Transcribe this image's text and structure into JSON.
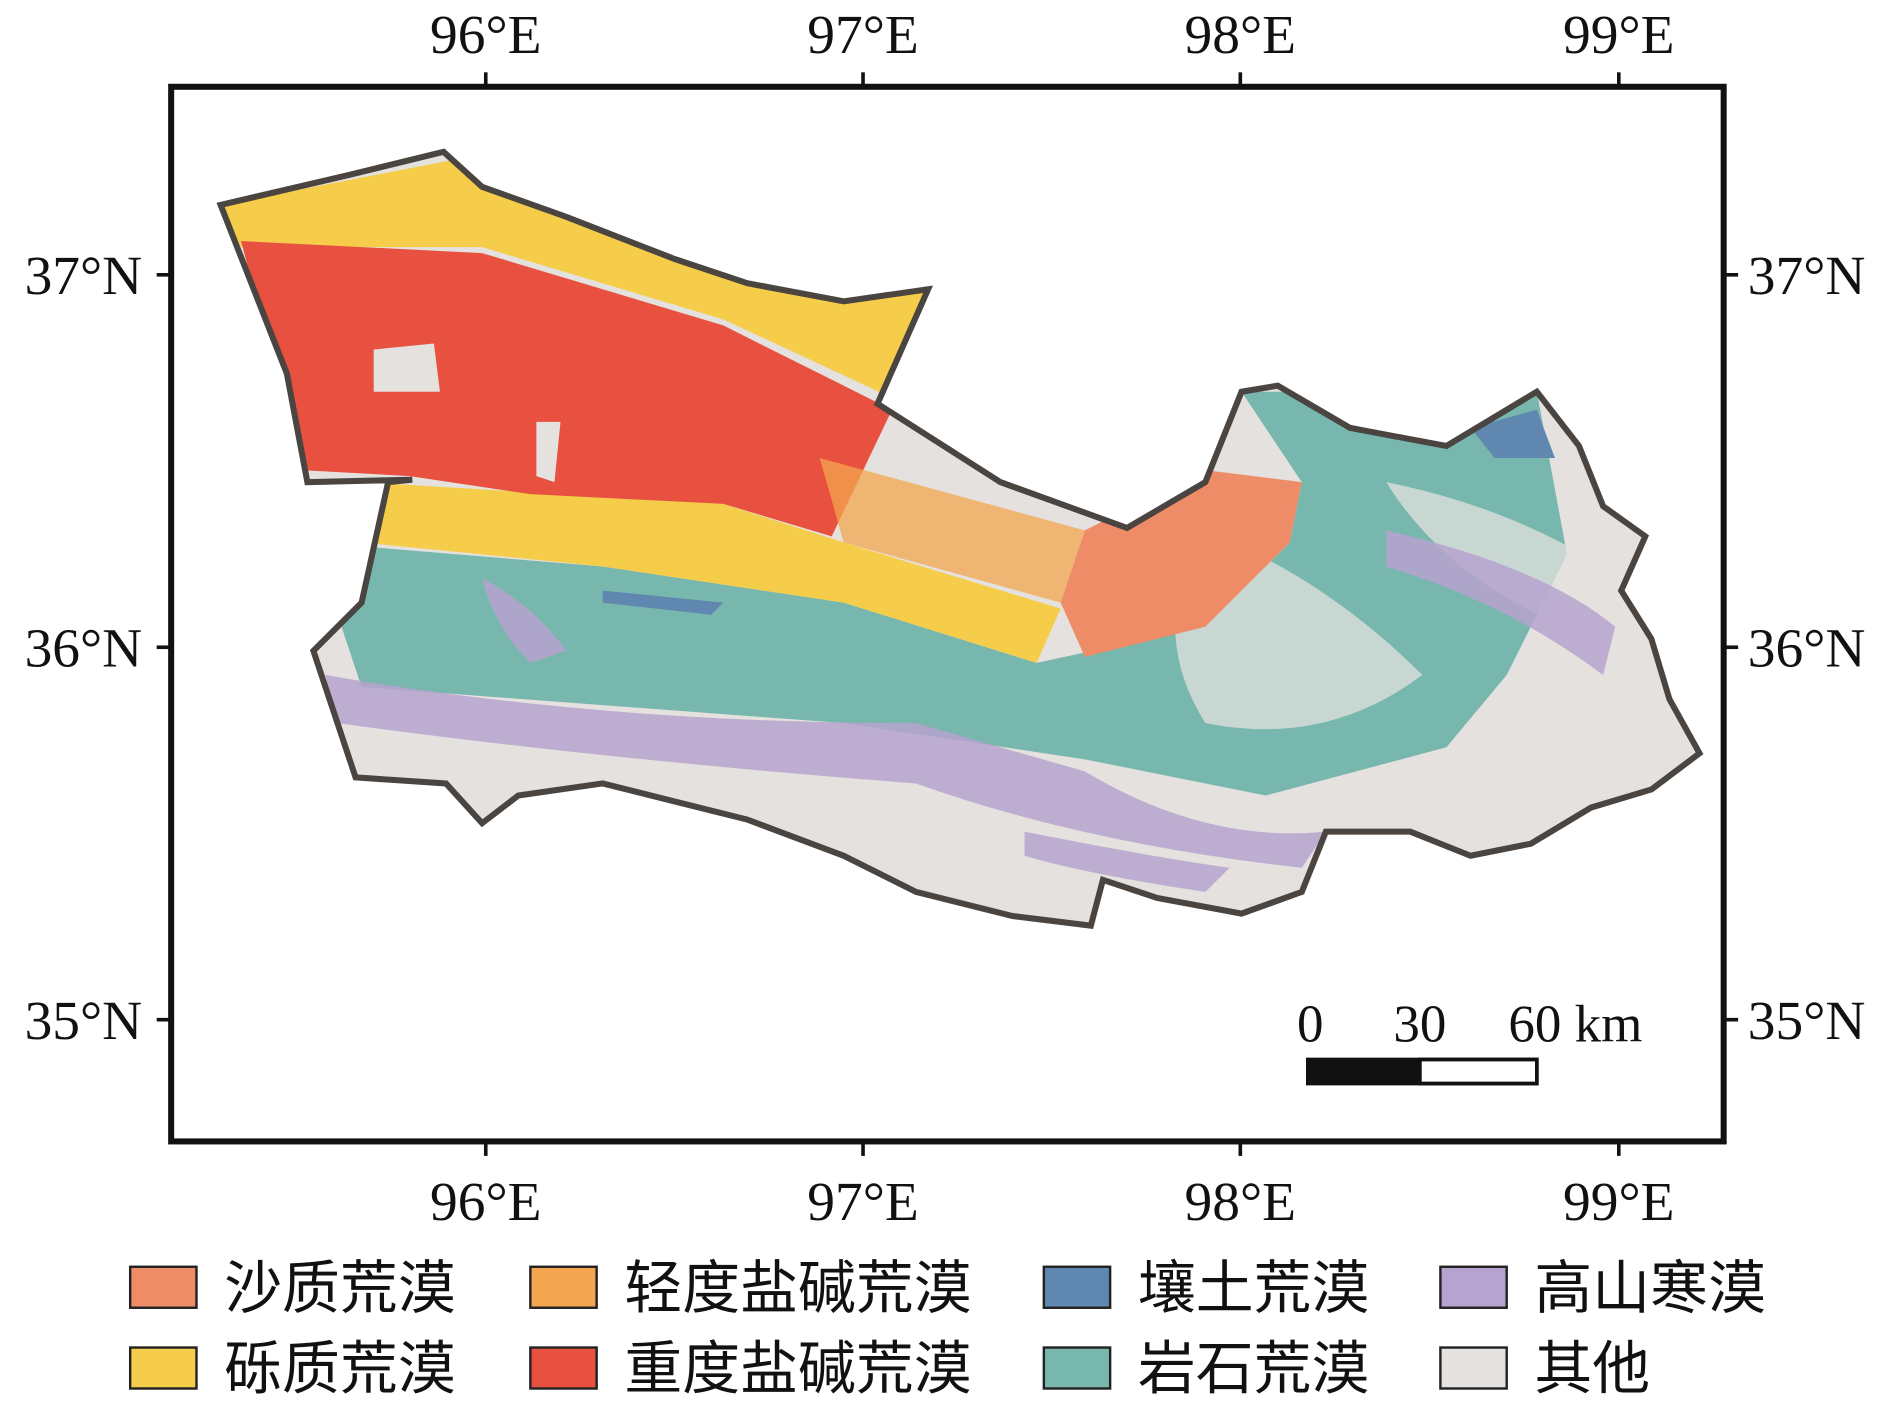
{
  "map": {
    "lon_labels": [
      "96°E",
      "97°E",
      "98°E",
      "99°E"
    ],
    "lat_labels": [
      "37°N",
      "36°N",
      "35°N"
    ],
    "scale_bar": {
      "labels": [
        "0",
        "30",
        "60 km"
      ]
    },
    "legend": [
      {
        "label": "沙质荒漠",
        "color": "#ef8c68"
      },
      {
        "label": "轻度盐碱荒漠",
        "color": "#f3a54f"
      },
      {
        "label": "壤土荒漠",
        "color": "#5f87b0"
      },
      {
        "label": "高山寒漠",
        "color": "#b6a3cf"
      },
      {
        "label": "砾质荒漠",
        "color": "#f6cd4a"
      },
      {
        "label": "重度盐碱荒漠",
        "color": "#e8503f"
      },
      {
        "label": "岩石荒漠",
        "color": "#78b7ae"
      },
      {
        "label": "其他",
        "color": "#e4e1de"
      }
    ]
  }
}
